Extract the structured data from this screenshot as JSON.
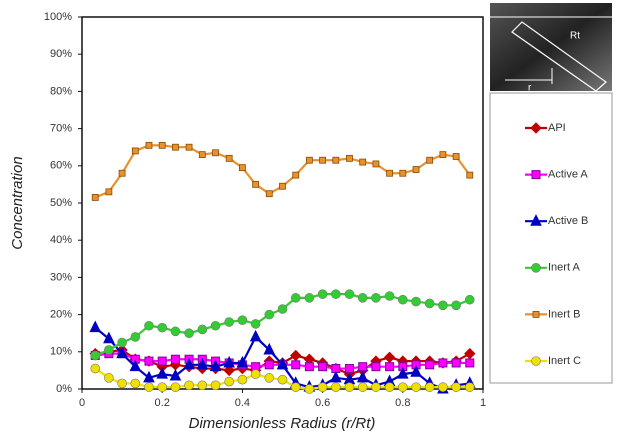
{
  "chart_data": {
    "type": "line",
    "x_label": "Dimensionless Radius (r/Rt)",
    "y_label": "Concentration",
    "x": [
      0.033,
      0.067,
      0.1,
      0.133,
      0.167,
      0.2,
      0.233,
      0.267,
      0.3,
      0.333,
      0.367,
      0.4,
      0.433,
      0.467,
      0.5,
      0.533,
      0.567,
      0.6,
      0.633,
      0.667,
      0.7,
      0.733,
      0.767,
      0.8,
      0.833,
      0.867,
      0.9,
      0.933,
      0.967
    ],
    "series": [
      {
        "name": "API",
        "color": "#c00000",
        "marker": "diamond",
        "values": [
          9.5,
          10,
          10.5,
          8,
          7.5,
          6,
          6.5,
          6,
          5.5,
          5.5,
          5,
          5.5,
          5,
          7.5,
          7,
          9,
          8,
          7,
          5.5,
          4,
          5,
          7.5,
          8.5,
          7.5,
          7.5,
          7.5,
          7,
          7.5,
          9.5
        ]
      },
      {
        "name": "Active A",
        "color": "#ff00ff",
        "marker": "square",
        "values": [
          9,
          9.5,
          9.5,
          8,
          7.5,
          7.5,
          8,
          8,
          8,
          7.5,
          7,
          6.5,
          6,
          6.5,
          6.5,
          6.5,
          6,
          6,
          5.5,
          5.5,
          6,
          6,
          6,
          6,
          6.5,
          6.5,
          7,
          7,
          7
        ]
      },
      {
        "name": "Active B",
        "color": "#0000c0",
        "marker": "triangle",
        "values": [
          16.5,
          13.5,
          9.5,
          6,
          3,
          4,
          3.5,
          6.5,
          6.5,
          6,
          7,
          7,
          14,
          10.5,
          6.5,
          1.5,
          0.5,
          1,
          3,
          2.5,
          3,
          1,
          2,
          4,
          4.5,
          1.5,
          0,
          1,
          1.5
        ]
      },
      {
        "name": "Inert A",
        "color": "#33cc33",
        "marker": "circle",
        "values": [
          9,
          10.5,
          12.5,
          14,
          17,
          16.5,
          15.5,
          15,
          16,
          17,
          18,
          18.5,
          17.5,
          20,
          21.5,
          24.5,
          24.5,
          25.5,
          25.5,
          25.5,
          24.5,
          24.5,
          25,
          24,
          23.5,
          23,
          22.5,
          22.5,
          24
        ]
      },
      {
        "name": "Inert B",
        "color": "#e8912f",
        "marker": "small-square",
        "values": [
          51.5,
          53,
          58,
          64,
          65.5,
          65.5,
          65,
          65,
          63,
          63.5,
          62,
          59.5,
          55,
          52.5,
          54.5,
          57.5,
          61.5,
          61.5,
          61.5,
          62,
          61,
          60.5,
          58,
          58,
          59,
          61.5,
          63,
          62.5,
          57.5
        ]
      },
      {
        "name": "Inert C",
        "color": "#f0e000",
        "marker": "circle",
        "values": [
          5.5,
          3,
          1.5,
          1.5,
          0.5,
          0.5,
          0.5,
          1,
          1,
          1,
          2,
          2.5,
          4,
          3,
          2.5,
          0.5,
          0,
          0.5,
          0.5,
          0.5,
          0.5,
          0.5,
          0.5,
          0.5,
          0.5,
          0.5,
          0.5,
          0.5,
          0.5
        ]
      }
    ],
    "xlim": [
      0,
      1
    ],
    "xticks": [
      0,
      0.2,
      0.4,
      0.6,
      0.8,
      1
    ],
    "ylim": [
      0,
      100
    ],
    "yticks": [
      {
        "value": 0,
        "label": "0%"
      },
      {
        "value": 10,
        "label": "10%"
      },
      {
        "value": 20,
        "label": "20%"
      },
      {
        "value": 30,
        "label": "30%"
      },
      {
        "value": 40,
        "label": "40%"
      },
      {
        "value": 50,
        "label": "50%"
      },
      {
        "value": 60,
        "label": "60%"
      },
      {
        "value": 70,
        "label": "70%"
      },
      {
        "value": 80,
        "label": "80%"
      },
      {
        "value": 90,
        "label": "90%"
      },
      {
        "value": 100,
        "label": "100%"
      }
    ],
    "grid": false,
    "inset": {
      "labels": [
        "Rt",
        "r"
      ]
    }
  }
}
